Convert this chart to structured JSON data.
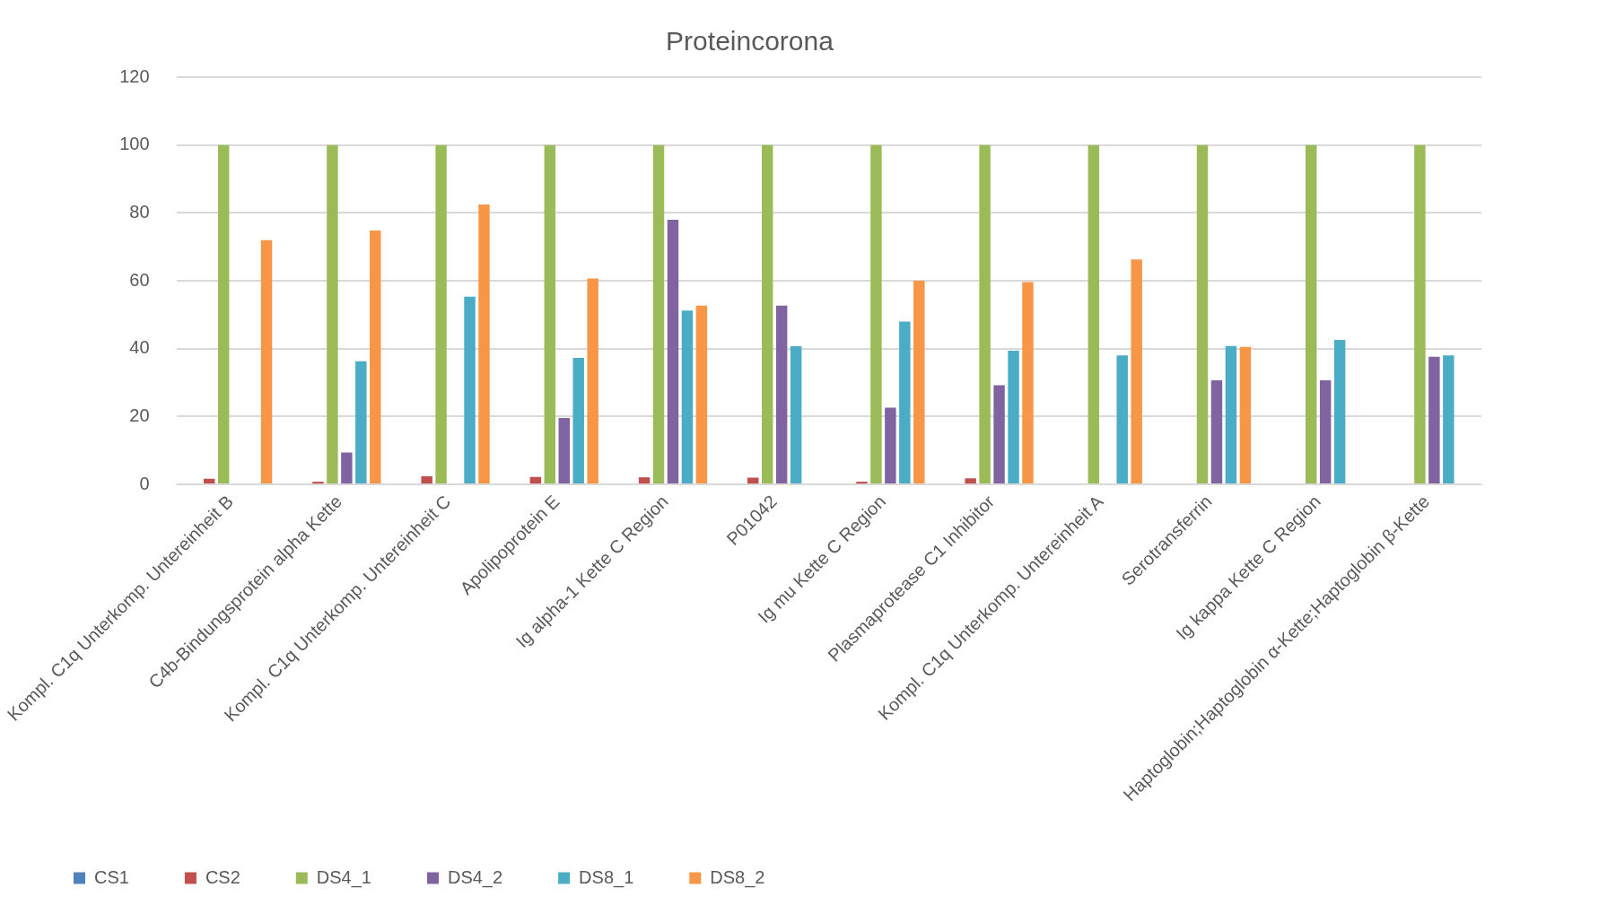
{
  "chart_data": {
    "type": "bar",
    "title": "Proteincorona",
    "categories": [
      "Kompl. C1q Unterkomp. Untereinheit B",
      "C4b-Bindungsprotein alpha Kette",
      "Kompl. C1q Unterkomp. Untereinheit C",
      "Apolipoprotein E",
      "Ig alpha-1 Kette C Region",
      "P01042",
      "Ig mu Kette C Region",
      "Plasmaprotease C1 Inhibitor",
      "Kompl. C1q Unterkomp. Untereinheit A",
      "Serotransferrin",
      "Ig kappa Kette C Region",
      "Haptoglobin;Haptoglobin α-Kette;Haptoglobin β-Kette"
    ],
    "series": [
      {
        "name": "CS1",
        "color": "#4f81bd",
        "values": [
          null,
          null,
          null,
          null,
          null,
          null,
          null,
          null,
          null,
          null,
          null,
          null
        ]
      },
      {
        "name": "CS2",
        "color": "#c0504d",
        "values": [
          1.7,
          0.8,
          2.4,
          2.2,
          2.1,
          2,
          0.8,
          1.8,
          null,
          null,
          null,
          null
        ]
      },
      {
        "name": "DS4_1",
        "color": "#9bbb59",
        "values": [
          100,
          100,
          100,
          100,
          100,
          100,
          100,
          100,
          100,
          100,
          100,
          100
        ]
      },
      {
        "name": "DS4_2",
        "color": "#8064a2",
        "values": [
          null,
          9.4,
          null,
          19.6,
          78,
          52.7,
          22.6,
          29.2,
          null,
          30.7,
          30.7,
          37.6
        ]
      },
      {
        "name": "DS8_1",
        "color": "#4bacc6",
        "values": [
          null,
          36.3,
          55.3,
          37.3,
          51.2,
          40.7,
          48,
          39.4,
          38,
          40.8,
          42.6,
          38
        ]
      },
      {
        "name": "DS8_2",
        "color": "#f79646",
        "values": [
          72,
          74.8,
          82.5,
          60.7,
          52.7,
          null,
          60,
          59.6,
          66.3,
          40.5,
          null,
          null
        ]
      }
    ],
    "ylim": [
      0,
      120
    ],
    "yticks": [
      0,
      20,
      40,
      60,
      80,
      100,
      120
    ],
    "grid": "y",
    "legend": "bottom"
  }
}
